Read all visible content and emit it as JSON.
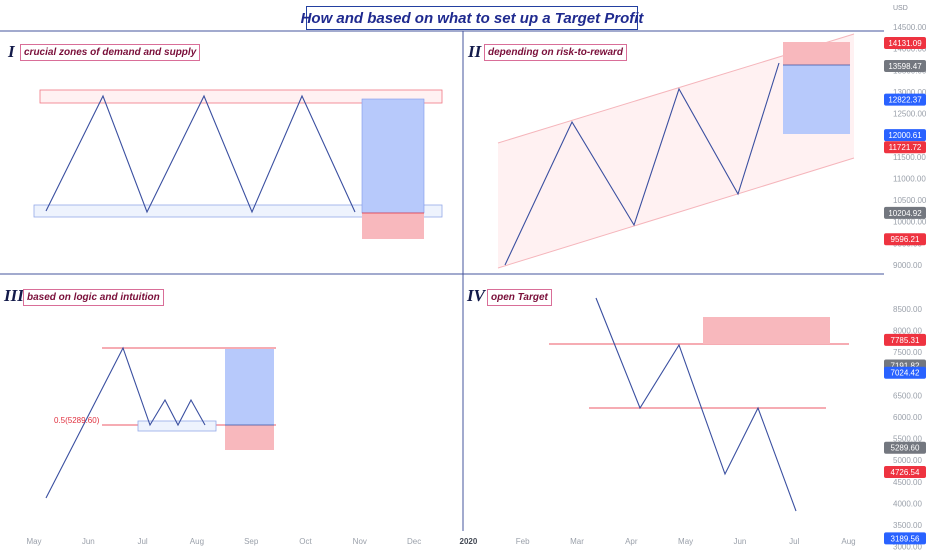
{
  "title": "How and based on what to set up a Target Profit",
  "panels": [
    {
      "numeral": "I",
      "label": "crucial zones of demand and supply"
    },
    {
      "numeral": "II",
      "label": "depending on risk-to-reward"
    },
    {
      "numeral": "III",
      "label": "based on logic and intuition"
    },
    {
      "numeral": "IV",
      "label": "open Target"
    }
  ],
  "fib_label": "0.5(5289.60)",
  "colors": {
    "line": "#3a4fa0",
    "target": "#b7c9fb",
    "stop": "#f8b8bd",
    "zone_red": "#f07783",
    "zone_blue": "#93a9e8",
    "divider": "#46549c",
    "price_red": "#ee3340",
    "price_blue": "#2962ff",
    "price_gray": "#73777f",
    "label_border": "#d96e98"
  },
  "chart_data": {
    "type": "line",
    "y_axis": {
      "unit": "USD",
      "ticks_upper": [
        14500,
        14000,
        13500,
        13000,
        12500,
        12000,
        11500,
        11000,
        10500,
        10000,
        9500,
        9000
      ],
      "ticks_lower": [
        8500,
        8000,
        7500,
        7000,
        6500,
        6000,
        5500,
        5000,
        4500,
        4000,
        3500,
        3000
      ],
      "tick_labels_upper": [
        "14500.00",
        "14000.00",
        "13500.00",
        "13000.00",
        "12500.00",
        "12000.00",
        "11500.00",
        "11000.00",
        "10500.00",
        "10000.00",
        "9500.00",
        "9000.00"
      ],
      "tick_labels_lower": [
        "8500.00",
        "8000.00",
        "7500.00",
        "7000.00",
        "6500.00",
        "6000.00",
        "5500.00",
        "5000.00",
        "4500.00",
        "4000.00",
        "3500.00",
        "3000.00"
      ]
    },
    "x_axis": {
      "labels": [
        "May",
        "Jun",
        "Jul",
        "Aug",
        "Sep",
        "Oct",
        "Nov",
        "Dec",
        "2020",
        "Feb",
        "Mar",
        "Apr",
        "May",
        "Jun",
        "Jul",
        "Aug"
      ],
      "bold": [
        "2020"
      ]
    },
    "price_tags": [
      {
        "value": "14131.09",
        "color": "#ee3340",
        "at": 14131.09
      },
      {
        "value": "13598.47",
        "color": "#73777f",
        "at": 13598.47
      },
      {
        "value": "12822.37",
        "color": "#2962ff",
        "at": 12822.37
      },
      {
        "value": "12000.61",
        "color": "#2962ff",
        "at": 12000.61
      },
      {
        "value": "11721.72",
        "color": "#ee3340",
        "at": 11721.72
      },
      {
        "value": "10204.92",
        "color": "#73777f",
        "at": 10204.92
      },
      {
        "value": "9596.21",
        "color": "#ee3340",
        "at": 9596.21
      },
      {
        "value": "7785.31",
        "color": "#ee3340",
        "at": 7785.31
      },
      {
        "value": "7191.82",
        "color": "#73777f",
        "at": 7191.82
      },
      {
        "value": "7024.42",
        "color": "#2962ff",
        "at": 7024.42
      },
      {
        "value": "5289.60",
        "color": "#73777f",
        "at": 5289.6
      },
      {
        "value": "4726.54",
        "color": "#ee3340",
        "at": 4726.54
      },
      {
        "value": "3189.56",
        "color": "#2962ff",
        "at": 3189.56
      }
    ]
  }
}
